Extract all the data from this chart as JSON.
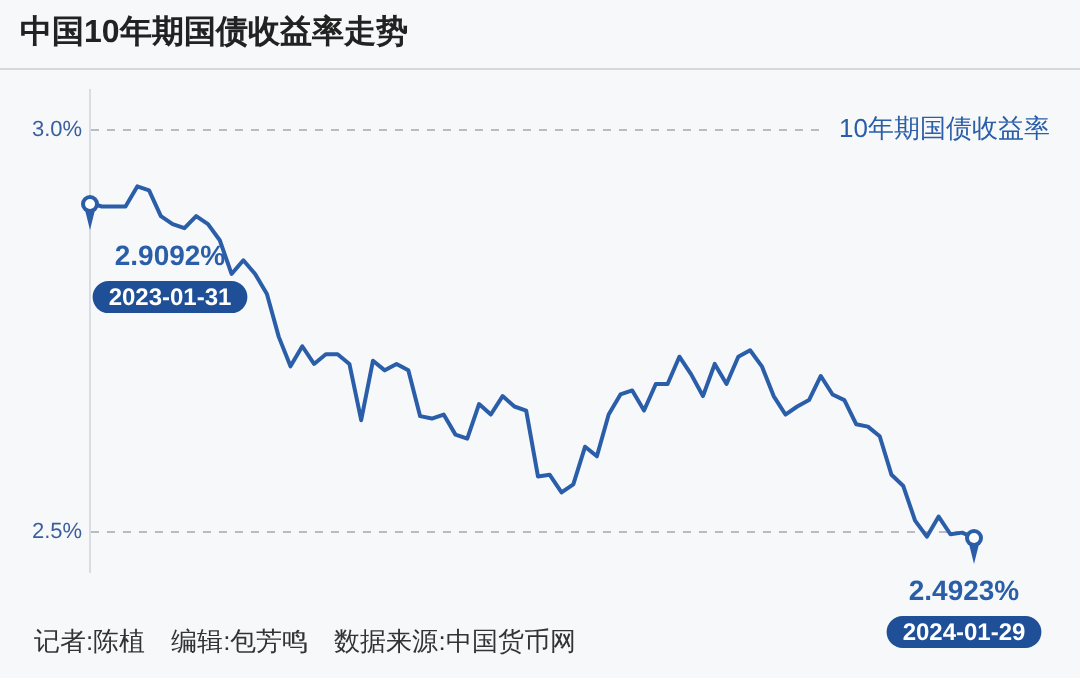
{
  "chart_data": {
    "type": "line",
    "title": "中国10年期国债收益率走势",
    "categories": [
      null,
      null,
      null,
      null,
      null,
      null,
      null,
      null,
      null,
      null,
      null,
      null,
      null,
      null,
      null,
      null,
      null,
      null,
      null,
      null,
      null,
      null,
      null,
      null,
      null,
      null,
      null,
      null,
      null,
      null,
      null,
      null,
      null,
      null,
      null,
      null,
      null,
      null,
      null,
      null,
      null,
      null,
      null,
      null,
      null,
      null,
      null,
      null,
      null,
      null,
      null,
      null,
      null,
      null,
      null,
      null,
      null,
      null,
      null,
      null,
      null,
      null,
      null,
      null,
      null,
      null,
      null,
      null,
      null,
      null,
      null,
      null,
      null,
      null,
      null,
      null
    ],
    "series": [
      {
        "name": "10年期国债收益率",
        "color": "#2b5ea8",
        "values": [
          2.9092,
          2.905,
          2.905,
          2.905,
          2.93,
          2.925,
          2.893,
          2.883,
          2.878,
          2.893,
          2.883,
          2.863,
          2.821,
          2.838,
          2.821,
          2.796,
          2.743,
          2.706,
          2.731,
          2.709,
          2.721,
          2.721,
          2.709,
          2.639,
          2.713,
          2.701,
          2.709,
          2.701,
          2.644,
          2.641,
          2.646,
          2.621,
          2.616,
          2.659,
          2.646,
          2.669,
          2.656,
          2.651,
          2.569,
          2.571,
          2.549,
          2.559,
          2.606,
          2.594,
          2.646,
          2.671,
          2.676,
          2.651,
          2.684,
          2.684,
          2.718,
          2.696,
          2.669,
          2.709,
          2.684,
          2.718,
          2.726,
          2.706,
          2.669,
          2.646,
          2.656,
          2.664,
          2.694,
          2.671,
          2.664,
          2.634,
          2.631,
          2.619,
          2.571,
          2.557,
          2.514,
          2.494,
          2.519,
          2.497,
          2.499,
          2.4923
        ]
      }
    ],
    "ylim": [
      2.45,
      3.05
    ],
    "yticks": [
      {
        "value": 2.5,
        "label": "2.5%"
      },
      {
        "value": 3.0,
        "label": "3.0%"
      }
    ],
    "grid": "y",
    "tick_labels": "y",
    "marker": "none",
    "line_style": "solid",
    "annotations": [
      "2.9092%",
      "2023-01-31",
      "2.4923%",
      "2024-01-29",
      "记者:陈植　编辑:包芳鸣　数据来源:中国货币网"
    ]
  }
}
